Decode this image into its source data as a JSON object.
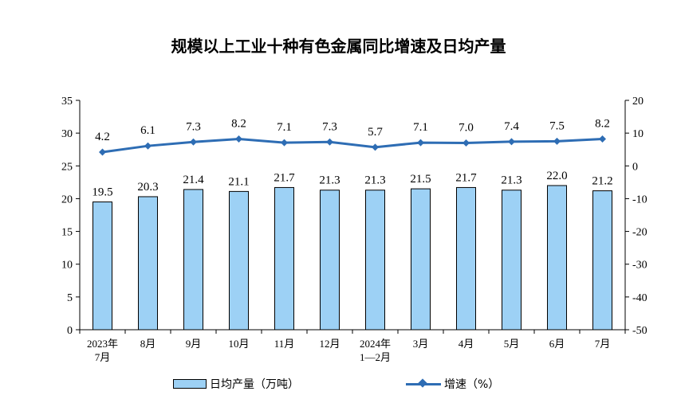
{
  "title": "规模以上工业十种有色金属同比增速及日均产量",
  "chart_data": {
    "type": "bar",
    "categories": [
      [
        "2023年",
        "7月"
      ],
      [
        "8月"
      ],
      [
        "9月"
      ],
      [
        "10月"
      ],
      [
        "11月"
      ],
      [
        "12月"
      ],
      [
        "2024年",
        "1—2月"
      ],
      [
        "3月"
      ],
      [
        "4月"
      ],
      [
        "5月"
      ],
      [
        "6月"
      ],
      [
        "7月"
      ]
    ],
    "series": [
      {
        "name": "日均产量（万吨）",
        "type": "bar",
        "axis": "left",
        "values": [
          19.5,
          20.3,
          21.4,
          21.1,
          21.7,
          21.3,
          21.3,
          21.5,
          21.7,
          21.3,
          22.0,
          21.2
        ],
        "labels": [
          "19.5",
          "20.3",
          "21.4",
          "21.1",
          "21.7",
          "21.3",
          "21.3",
          "21.5",
          "21.7",
          "21.3",
          "22.0",
          "21.2"
        ],
        "color": "#9dd1f5"
      },
      {
        "name": "增速（%）",
        "type": "line",
        "axis": "right",
        "values": [
          4.2,
          6.1,
          7.3,
          8.2,
          7.1,
          7.3,
          5.7,
          7.1,
          7.0,
          7.4,
          7.5,
          8.2
        ],
        "labels": [
          "4.2",
          "6.1",
          "7.3",
          "8.2",
          "7.1",
          "7.3",
          "5.7",
          "7.1",
          "7.0",
          "7.4",
          "7.5",
          "8.2"
        ],
        "color": "#2e6db4"
      }
    ],
    "y_left": {
      "lim": [
        0,
        35
      ],
      "ticks": [
        "0",
        "5",
        "10",
        "15",
        "20",
        "25",
        "30",
        "35"
      ]
    },
    "y_right": {
      "lim": [
        -50,
        20
      ],
      "ticks": [
        "-50",
        "-40",
        "-30",
        "-20",
        "-10",
        "0",
        "10",
        "20"
      ]
    },
    "grid": false,
    "legend_position": "bottom"
  },
  "legend": {
    "bar_label": "日均产量（万吨）",
    "line_label": "增速（%）"
  }
}
